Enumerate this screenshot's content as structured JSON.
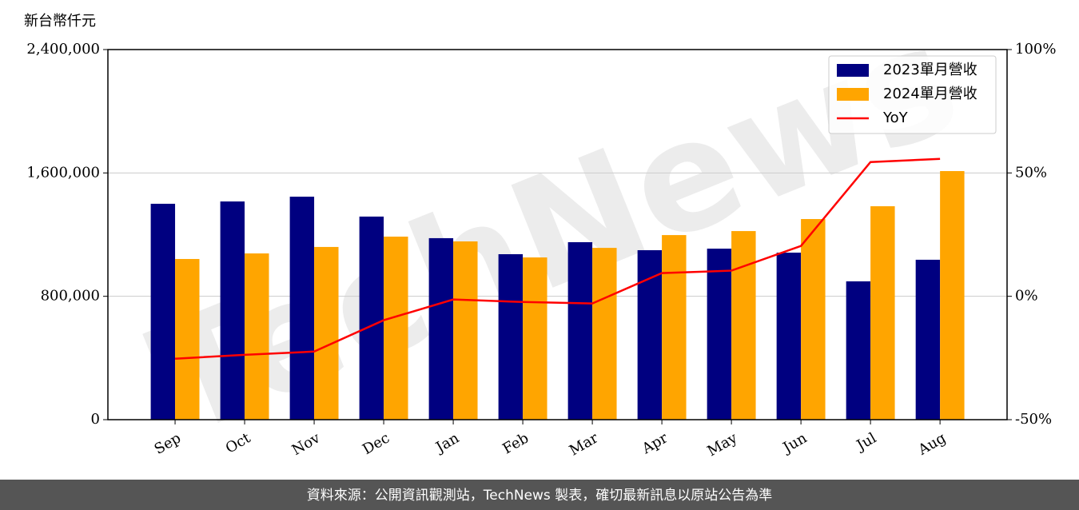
{
  "chart_data": {
    "type": "bar_line",
    "y_label": "新台幣仟元",
    "watermark": "TechNews",
    "footer": "資料來源：公開資訊觀測站，TechNews 製表，確切最新訊息以原站公告為準",
    "categories": [
      "Sep",
      "Oct",
      "Nov",
      "Dec",
      "Jan",
      "Feb",
      "Mar",
      "Apr",
      "May",
      "Jun",
      "Jul",
      "Aug"
    ],
    "series": [
      {
        "name": "2023單月營收",
        "color": "#000080",
        "type": "bar",
        "values": [
          1400000,
          1415000,
          1446000,
          1317000,
          1177000,
          1073000,
          1151000,
          1099000,
          1109000,
          1083000,
          897000,
          1037000
        ]
      },
      {
        "name": "2024單月營收",
        "color": "#ffa500",
        "type": "bar",
        "values": [
          1042000,
          1078000,
          1120000,
          1187000,
          1156000,
          1052000,
          1114000,
          1197000,
          1223000,
          1301000,
          1384000,
          1612000
        ]
      },
      {
        "name": "YoY",
        "color": "#ff0000",
        "type": "line",
        "axis": "y2",
        "values": [
          -25.3,
          -23.7,
          -22.4,
          -9.7,
          -1.3,
          -2.3,
          -2.9,
          9.4,
          10.4,
          20.4,
          54.4,
          55.7
        ]
      }
    ],
    "ylim": [
      0,
      2400000
    ],
    "yticks": [
      0,
      {
        "value": 800000,
        "label": "800,000"
      },
      {
        "value": 1600000,
        "label": "1,600,000"
      },
      {
        "value": 2400000,
        "label": "2,400,000"
      }
    ],
    "y2lim": [
      -50,
      100
    ],
    "y2ticks": [
      {
        "value": -50,
        "label": "-50%"
      },
      {
        "value": 0,
        "label": "0%"
      },
      {
        "value": 50,
        "label": "50%"
      },
      {
        "value": 100,
        "label": "100%"
      }
    ],
    "grid": true,
    "legend": "upper right"
  }
}
